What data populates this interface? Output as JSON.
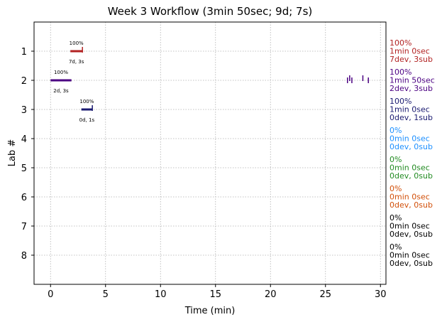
{
  "chart_data": {
    "type": "timeline",
    "title": "Week 3 Workflow (3min 50sec; 9d; 7s)",
    "xlabel": "Time (min)",
    "ylabel": "Lab #",
    "xlim": [
      -1.5,
      30.5
    ],
    "ylim": [
      9,
      0
    ],
    "xticks": [
      0,
      5,
      10,
      15,
      20,
      25,
      30
    ],
    "yticks": [
      1,
      2,
      3,
      4,
      5,
      6,
      7,
      8
    ],
    "grid": true,
    "labs": [
      {
        "lab": 1,
        "color": "#b22222",
        "bar": [
          1.8,
          2.9
        ],
        "ticks": [
          2.9
        ],
        "pct": "100%",
        "detail": "7d, 3s",
        "side": [
          "100%",
          "1min 0sec",
          "7dev, 3sub"
        ]
      },
      {
        "lab": 2,
        "color": "#4b0082",
        "bar": [
          0,
          1.9
        ],
        "ticks": [
          27.0,
          27.2,
          27.4,
          28.4,
          28.9
        ],
        "pct": "100%",
        "detail": "2d, 3s",
        "side": [
          "100%",
          "1min 50sec",
          "2dev, 3sub"
        ]
      },
      {
        "lab": 3,
        "color": "#191970",
        "bar": [
          2.8,
          3.8
        ],
        "ticks": [
          3.8
        ],
        "pct": "100%",
        "detail": "0d, 1s",
        "side": [
          "100%",
          "1min 0sec",
          "0dev, 1sub"
        ]
      },
      {
        "lab": 4,
        "color": "#1e90ff",
        "bar": null,
        "ticks": [],
        "pct": "",
        "detail": "",
        "side": [
          "0%",
          "0min 0sec",
          "0dev, 0sub"
        ]
      },
      {
        "lab": 5,
        "color": "#228b22",
        "bar": null,
        "ticks": [],
        "pct": "",
        "detail": "",
        "side": [
          "0%",
          "0min 0sec",
          "0dev, 0sub"
        ]
      },
      {
        "lab": 6,
        "color": "#d2500a",
        "bar": null,
        "ticks": [],
        "pct": "",
        "detail": "",
        "side": [
          "0%",
          "0min 0sec",
          "0dev, 0sub"
        ]
      },
      {
        "lab": 7,
        "color": "#000000",
        "bar": null,
        "ticks": [],
        "pct": "",
        "detail": "",
        "side": [
          "0%",
          "0min 0sec",
          "0dev, 0sub"
        ]
      },
      {
        "lab": 8,
        "color": "#000000",
        "bar": null,
        "ticks": [],
        "pct": "",
        "detail": "",
        "side": [
          "0%",
          "0min 0sec",
          "0dev, 0sub"
        ]
      }
    ]
  }
}
